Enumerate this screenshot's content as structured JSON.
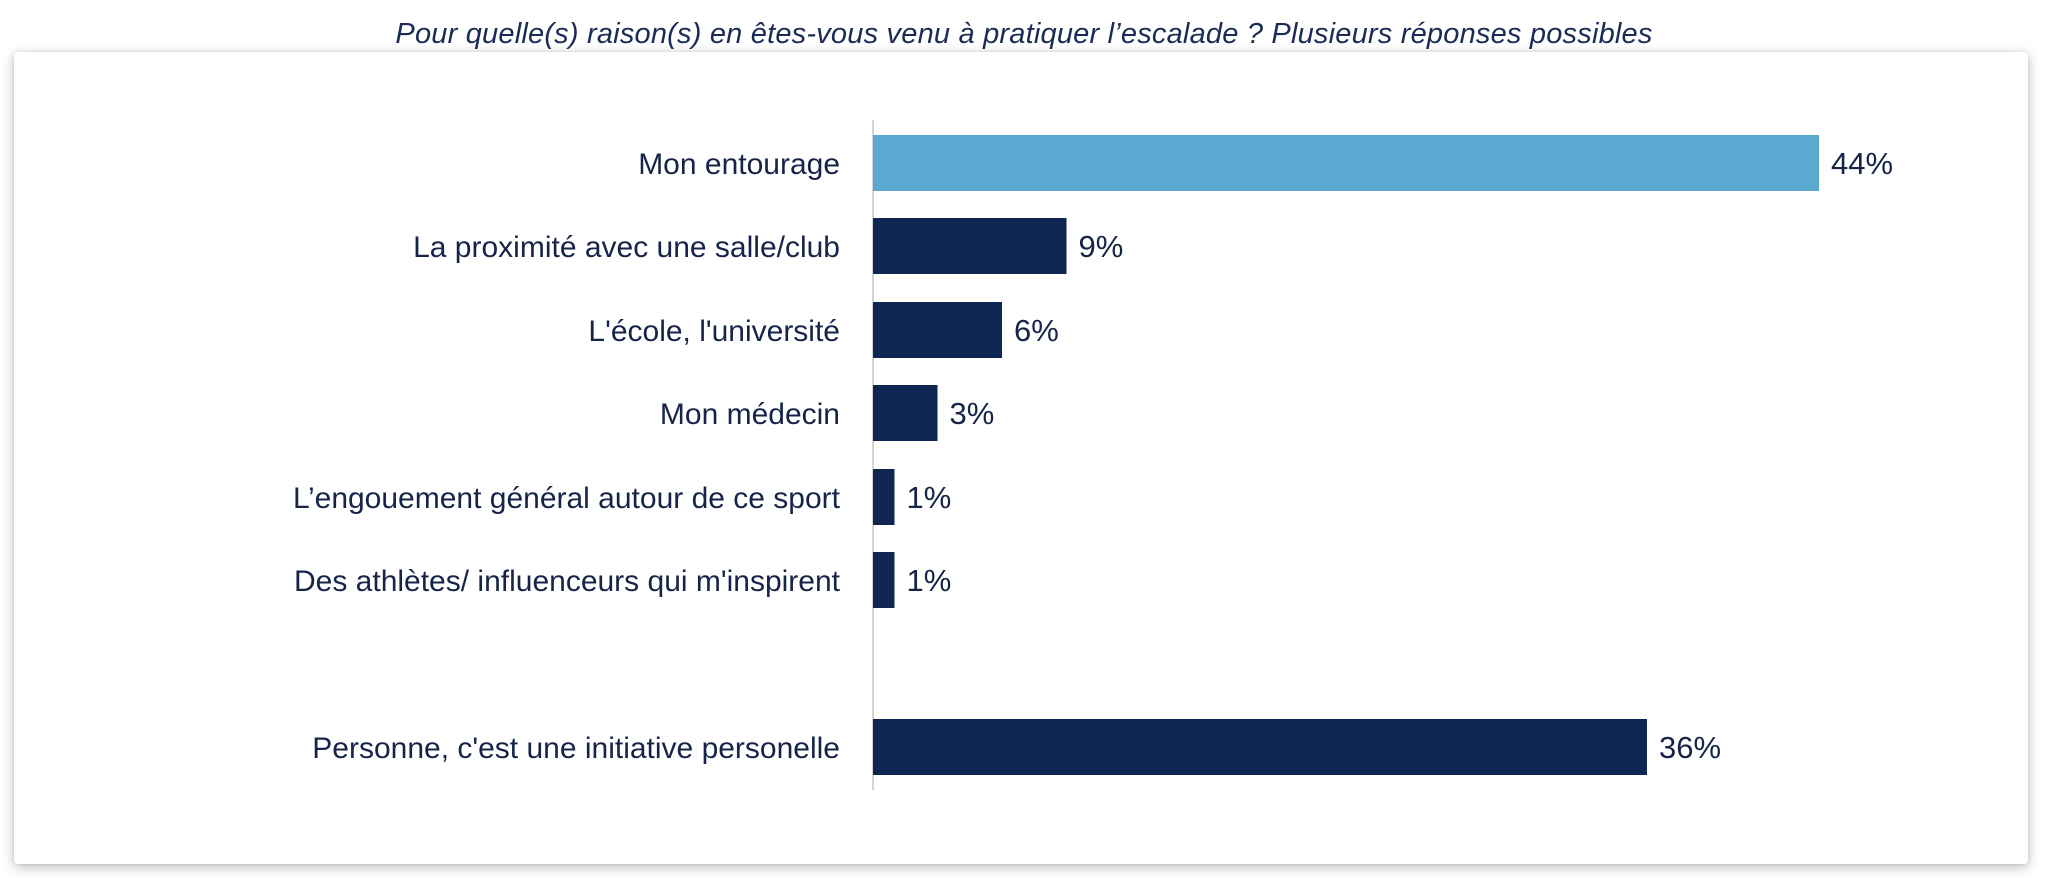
{
  "chart_data": {
    "type": "bar",
    "orientation": "horizontal",
    "title": "Pour quelle(s) raison(s) en êtes-vous venu à pratiquer l’escalade ?  Plusieurs réponses possibles",
    "categories": [
      "Mon entourage",
      "La proximité avec une salle/club",
      "L'école, l'université",
      "Mon médecin",
      "L’engouement général autour de ce sport",
      "Des athlètes/ influenceurs qui m'inspirent",
      "Personne, c'est une initiative personelle"
    ],
    "values": [
      44,
      9,
      6,
      3,
      1,
      1,
      36
    ],
    "value_labels": [
      "44%",
      "9%",
      "6%",
      "3%",
      "1%",
      "1%",
      "36%"
    ],
    "unit": "%",
    "highlight_index": 0,
    "colors": {
      "highlight": "#5aa9d0",
      "bar": "#0f2552",
      "axis": "#d4d4d4",
      "text": "#16244a"
    },
    "xlim": [
      0,
      44
    ],
    "grid": false,
    "legend": "none"
  }
}
